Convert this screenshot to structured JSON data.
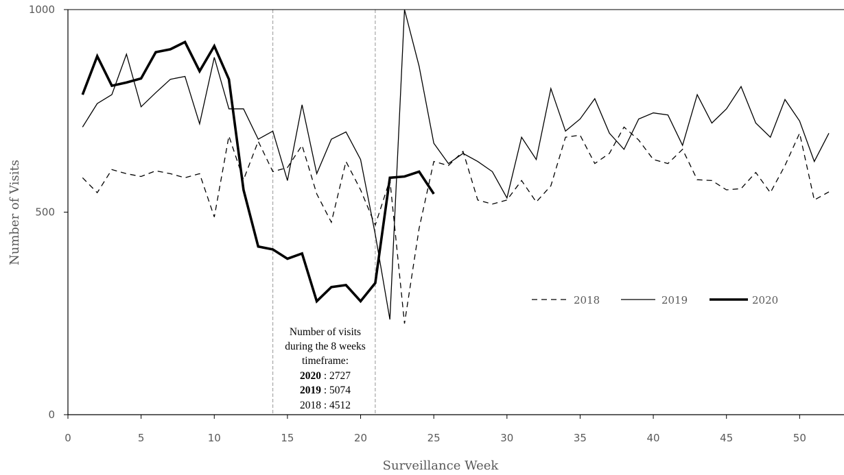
{
  "chart_data": {
    "type": "line",
    "title": "",
    "xlabel": "Surveillance Week",
    "ylabel": "Number of Visits",
    "xlim": [
      0,
      52.5
    ],
    "ylim": [
      0,
      1000
    ],
    "x_ticks": [
      "0",
      "5",
      "10",
      "15",
      "20",
      "25",
      "30",
      "35",
      "40",
      "45",
      "50"
    ],
    "y_ticks": [
      "0",
      "500",
      "1000"
    ],
    "grid": false,
    "legend_position": "right-middle",
    "reference_lines_x": [
      14,
      21
    ],
    "series": [
      {
        "name": "2018",
        "style": "dashed",
        "color": "#000000",
        "x": [
          1,
          2,
          3,
          4,
          5,
          6,
          7,
          8,
          9,
          10,
          11,
          12,
          13,
          14,
          15,
          16,
          17,
          18,
          19,
          20,
          21,
          22,
          23,
          24,
          25,
          26,
          27,
          28,
          29,
          30,
          31,
          32,
          33,
          34,
          35,
          36,
          37,
          38,
          39,
          40,
          41,
          42,
          43,
          44,
          45,
          46,
          47,
          48,
          49,
          50,
          51,
          52
        ],
        "values": [
          585,
          548,
          605,
          595,
          588,
          602,
          595,
          585,
          595,
          488,
          688,
          580,
          675,
          600,
          610,
          665,
          545,
          475,
          625,
          555,
          468,
          580,
          225,
          460,
          625,
          615,
          650,
          530,
          520,
          530,
          578,
          525,
          565,
          685,
          690,
          620,
          645,
          710,
          678,
          630,
          620,
          655,
          580,
          578,
          555,
          558,
          598,
          548,
          615,
          695,
          530,
          550
        ]
      },
      {
        "name": "2019",
        "style": "solid",
        "color": "#000000",
        "x": [
          1,
          2,
          3,
          4,
          5,
          6,
          7,
          8,
          9,
          10,
          11,
          12,
          13,
          14,
          15,
          16,
          17,
          18,
          19,
          20,
          21,
          22,
          23,
          24,
          25,
          26,
          27,
          28,
          29,
          30,
          31,
          32,
          33,
          34,
          35,
          36,
          37,
          38,
          39,
          40,
          41,
          42,
          43,
          44,
          45,
          46,
          47,
          48,
          49,
          50,
          51,
          52
        ],
        "values": [
          710,
          768,
          790,
          890,
          760,
          795,
          828,
          835,
          718,
          882,
          755,
          755,
          680,
          700,
          578,
          765,
          595,
          680,
          698,
          630,
          445,
          235,
          1000,
          860,
          670,
          620,
          645,
          625,
          600,
          535,
          685,
          630,
          805,
          700,
          730,
          780,
          695,
          655,
          730,
          745,
          740,
          665,
          790,
          720,
          755,
          810,
          720,
          685,
          778,
          725,
          625,
          695
        ]
      },
      {
        "name": "2020",
        "style": "bold",
        "color": "#000000",
        "x": [
          1,
          2,
          3,
          4,
          5,
          6,
          7,
          8,
          9,
          10,
          11,
          12,
          13,
          14,
          15,
          16,
          17,
          18,
          19,
          20,
          21,
          22,
          23,
          24,
          25
        ],
        "values": [
          790,
          885,
          812,
          820,
          830,
          895,
          902,
          920,
          848,
          910,
          828,
          555,
          415,
          408,
          385,
          398,
          280,
          315,
          320,
          280,
          325,
          585,
          588,
          600,
          545
        ]
      }
    ],
    "annotation": {
      "lines": [
        "Number of visits",
        "during the 8 weeks",
        "timeframe:"
      ],
      "counts": [
        {
          "year": "2020",
          "value": " : 2727",
          "bold": true
        },
        {
          "year": "2019",
          "value": " : 5074",
          "bold": true
        },
        {
          "year": "2018",
          "value": " : 4512",
          "bold": false
        }
      ]
    }
  }
}
